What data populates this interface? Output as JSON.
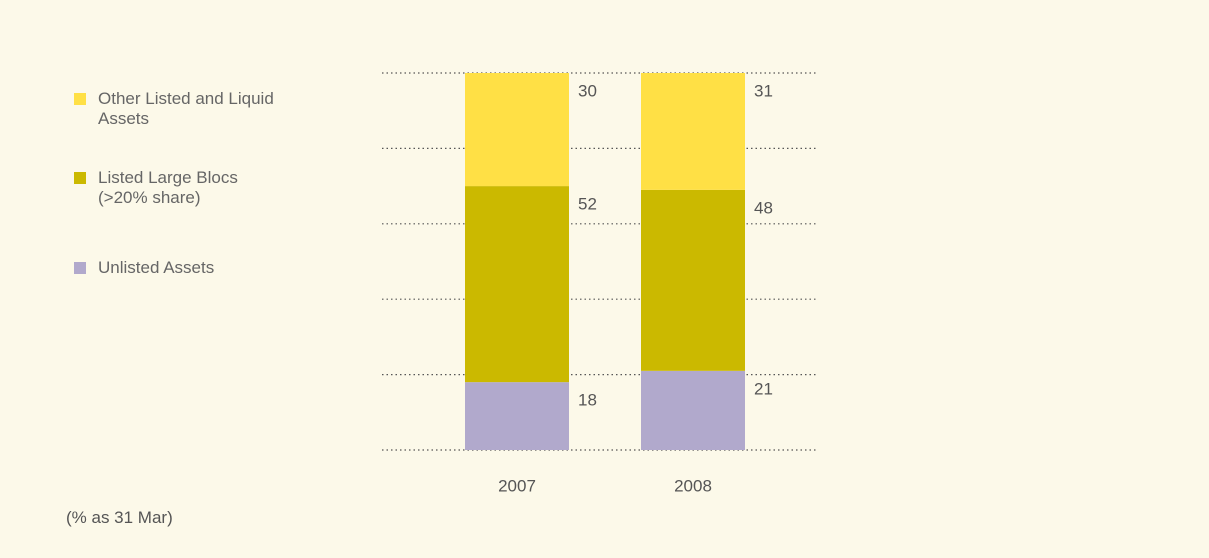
{
  "chart_data": {
    "type": "stacked_bar",
    "categories": [
      "2007",
      "2008"
    ],
    "series": [
      {
        "name": "Unlisted Assets",
        "color": "#b1a9cc",
        "values": [
          18,
          21
        ]
      },
      {
        "name": "Listed Large Blocs (>20% share)",
        "color": "#cbb900",
        "values": [
          52,
          48
        ]
      },
      {
        "name": "Other Listed and Liquid Assets",
        "color": "#ffe045",
        "values": [
          30,
          31
        ]
      }
    ],
    "ylim": [
      0,
      100
    ],
    "yticks": [
      0,
      20,
      40,
      60,
      80,
      100
    ],
    "grid": true,
    "legend": "left",
    "footnote": "(% as 31 Mar)"
  }
}
